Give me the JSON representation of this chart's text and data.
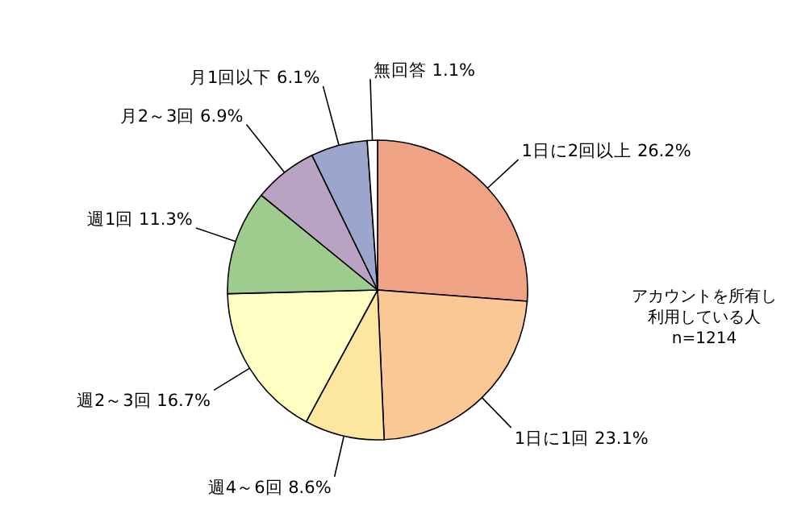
{
  "chart_data": {
    "type": "pie",
    "categories": [
      "1日に2回以上",
      "1日に1回",
      "週4～6回",
      "週2～3回",
      "週1回",
      "月2～3回",
      "月1回以下",
      "無回答"
    ],
    "values": [
      26.2,
      23.1,
      8.6,
      16.7,
      11.3,
      6.9,
      6.1,
      1.1
    ],
    "value_labels": [
      "26.2%",
      "23.1%",
      "8.6%",
      "16.7%",
      "11.3%",
      "6.9%",
      "6.1%",
      "1.1%"
    ],
    "colors": [
      "#f0a285",
      "#f9c894",
      "#fde6a0",
      "#ffffc4",
      "#9ecb8e",
      "#baa2c2",
      "#9ca6cc",
      "#ffffff"
    ],
    "annotations": [
      "アカウントを所有し利用している人",
      "n=1214"
    ]
  }
}
